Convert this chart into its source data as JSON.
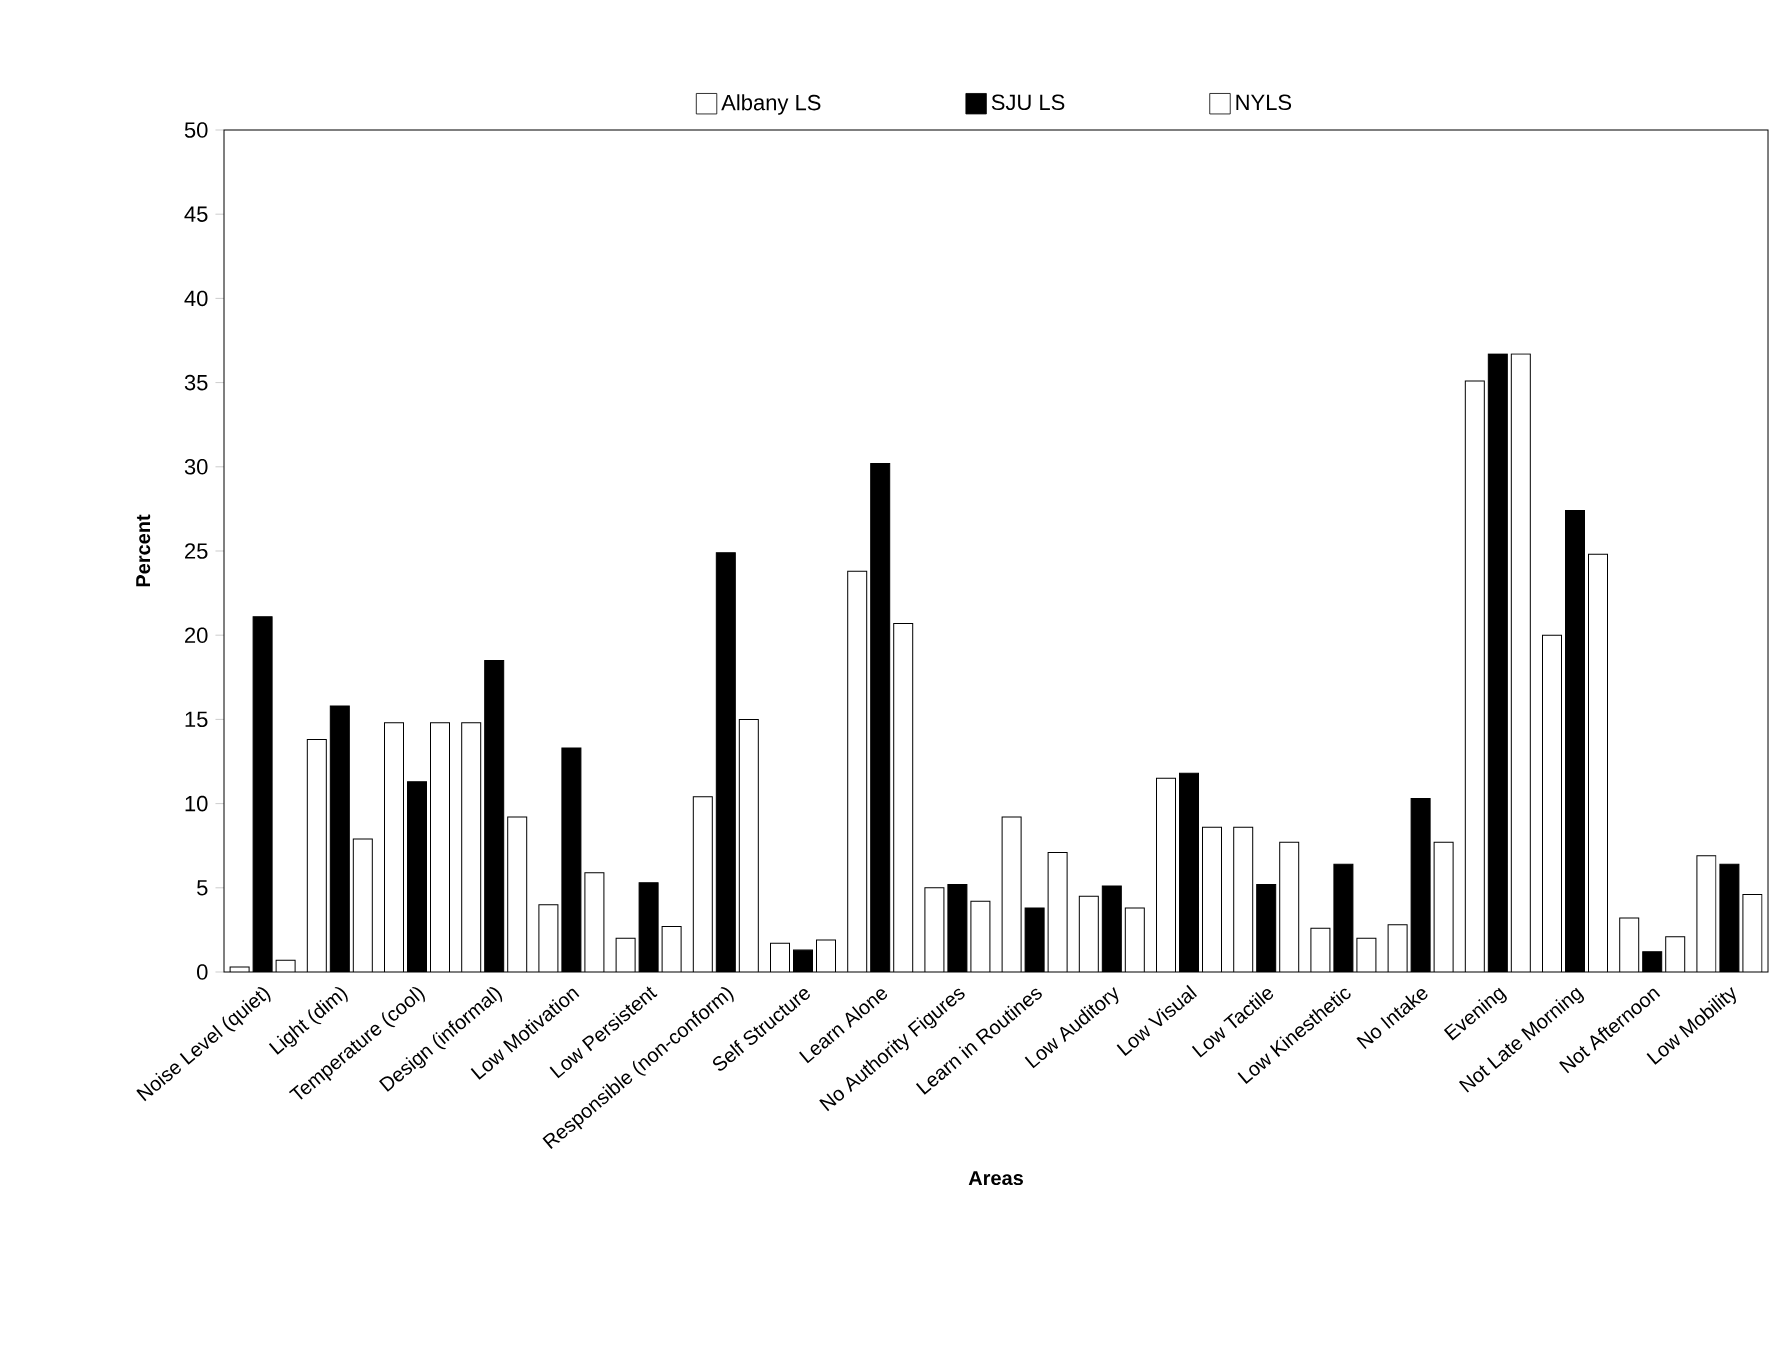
{
  "chart_data": {
    "type": "bar",
    "xlabel": "Areas",
    "ylabel": "Percent",
    "categories": [
      "Noise Level  (quiet)",
      "Light (dim)",
      "Temperature (cool)",
      "Design (informal)",
      "Low Motivation",
      "Low Persistent",
      "Responsible  (non-conform)",
      "Self Structure",
      "Learn Alone",
      "No Authority Figures",
      "Learn in Routines",
      "Low Auditory",
      "Low Visual",
      "Low Tactile",
      "Low Kinesthetic",
      "No Intake",
      "Evening",
      "Not Late Morning",
      "Not Afternoon",
      "Low Mobility"
    ],
    "series": [
      {
        "name": "Albany LS",
        "color": "#ffffff",
        "values": [
          0.3,
          13.8,
          14.8,
          14.8,
          4.0,
          2.0,
          10.4,
          1.7,
          23.8,
          5.0,
          9.2,
          4.5,
          11.5,
          8.6,
          2.6,
          2.8,
          35.1,
          20.0,
          3.2,
          6.9
        ]
      },
      {
        "name": "SJU LS",
        "color": "#000000",
        "values": [
          21.1,
          15.8,
          11.3,
          18.5,
          13.3,
          5.3,
          24.9,
          1.3,
          30.2,
          5.2,
          3.8,
          5.1,
          11.8,
          5.2,
          6.4,
          10.3,
          36.7,
          27.4,
          1.2,
          6.4
        ]
      },
      {
        "name": "NYLS",
        "color": "#ffffff",
        "values": [
          0.7,
          7.9,
          14.8,
          9.2,
          5.9,
          2.7,
          15.0,
          1.9,
          20.7,
          4.2,
          7.1,
          3.8,
          8.6,
          7.7,
          2.0,
          7.7,
          36.7,
          24.8,
          2.1,
          4.6
        ]
      }
    ],
    "ylim": [
      0,
      50
    ],
    "yticks": [
      0,
      5,
      10,
      15,
      20,
      25,
      30,
      35,
      40,
      45,
      50
    ],
    "legend": "top"
  }
}
